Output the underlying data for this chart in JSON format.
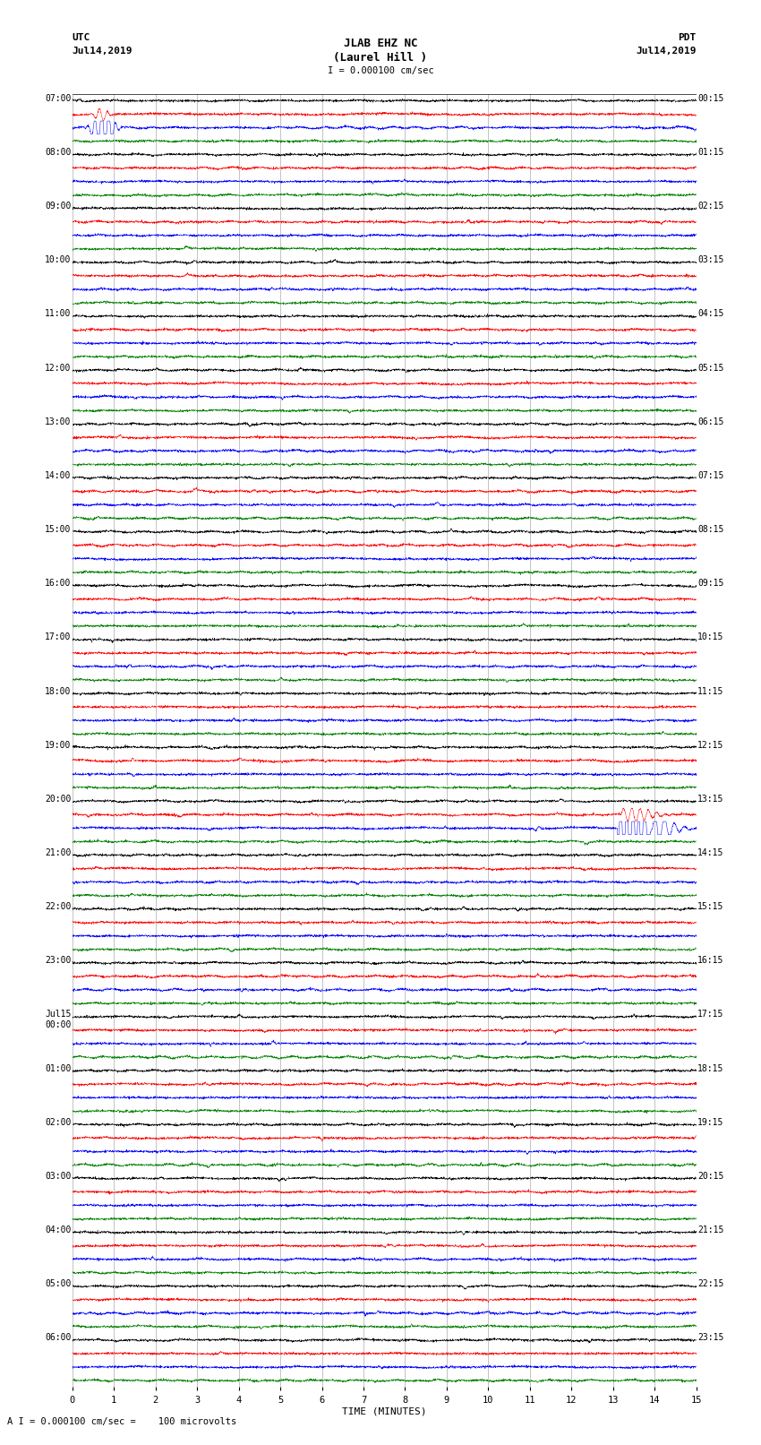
{
  "title_line1": "JLAB EHZ NC",
  "title_line2": "(Laurel Hill )",
  "scale_label": "I = 0.000100 cm/sec",
  "left_label_top": "UTC",
  "left_label_date": "Jul14,2019",
  "right_label_top": "PDT",
  "right_label_date": "Jul14,2019",
  "bottom_label": "TIME (MINUTES)",
  "footnote": "A I = 0.000100 cm/sec =    100 microvolts",
  "xlabel_ticks": [
    0,
    1,
    2,
    3,
    4,
    5,
    6,
    7,
    8,
    9,
    10,
    11,
    12,
    13,
    14,
    15
  ],
  "utc_hour_labels": [
    "07:00",
    "08:00",
    "09:00",
    "10:00",
    "11:00",
    "12:00",
    "13:00",
    "14:00",
    "15:00",
    "16:00",
    "17:00",
    "18:00",
    "19:00",
    "20:00",
    "21:00",
    "22:00",
    "23:00",
    "Jul15\n00:00",
    "01:00",
    "02:00",
    "03:00",
    "04:00",
    "05:00",
    "06:00"
  ],
  "pdt_hour_labels": [
    "00:15",
    "01:15",
    "02:15",
    "03:15",
    "04:15",
    "05:15",
    "06:15",
    "07:15",
    "08:15",
    "09:15",
    "10:15",
    "11:15",
    "12:15",
    "13:15",
    "14:15",
    "15:15",
    "16:15",
    "17:15",
    "18:15",
    "19:15",
    "20:15",
    "21:15",
    "22:15",
    "23:15"
  ],
  "colors": [
    "black",
    "red",
    "blue",
    "green"
  ],
  "n_hours": 24,
  "n_traces_per_hour": 4,
  "minutes": 15,
  "bg_color": "white",
  "grid_color": "#888888",
  "noise_amplitude": 0.28,
  "earthquake_hour": 13,
  "earthquake_col": 2,
  "earthquake_time": 13.2,
  "earthquake_amp": 2.2,
  "burst_hour": 0,
  "burst_col": 2,
  "burst_time": 0.75,
  "burst_amp": 1.5
}
